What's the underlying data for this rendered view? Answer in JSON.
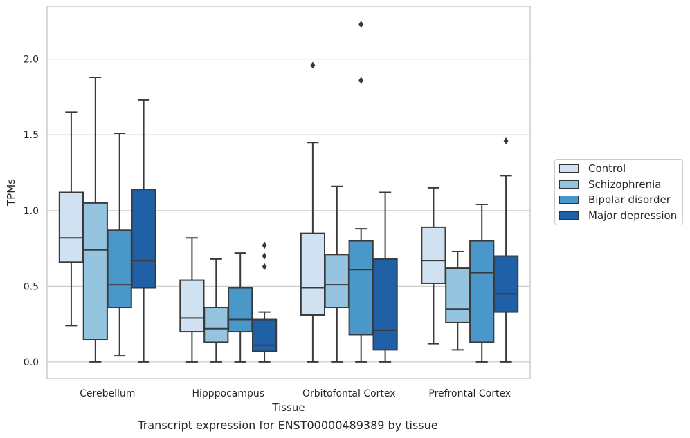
{
  "caption": "Transcript expression for ENST00000489389 by tissue",
  "colors": {
    "Control": "#d0e1f2",
    "Schizophrenia": "#94c4df",
    "Bipolar disorder": "#4a98c9",
    "Major depression": "#2060a7",
    "line": "#3a3a3a",
    "grid": "#cccccc",
    "frame": "#cccccc"
  },
  "chart_data": {
    "type": "boxplot",
    "xlabel": "Tissue",
    "ylabel": "TPMs",
    "ylim": [
      -0.11,
      2.35
    ],
    "yticks": [
      0.0,
      0.5,
      1.0,
      1.5,
      2.0
    ],
    "ytick_labels": [
      "0.0",
      "0.5",
      "1.0",
      "1.5",
      "2.0"
    ],
    "categories": [
      "Cerebellum",
      "Hipppocampus",
      "Orbitofontal Cortex",
      "Prefrontal Cortex"
    ],
    "grid": "horizontal",
    "legend_position": "right",
    "series": [
      {
        "name": "Control",
        "boxes": [
          {
            "whislo": 0.24,
            "q1": 0.66,
            "med": 0.82,
            "q3": 1.12,
            "whishi": 1.65,
            "fliers": []
          },
          {
            "whislo": 0.0,
            "q1": 0.2,
            "med": 0.29,
            "q3": 0.54,
            "whishi": 0.82,
            "fliers": []
          },
          {
            "whislo": 0.0,
            "q1": 0.31,
            "med": 0.49,
            "q3": 0.85,
            "whishi": 1.45,
            "fliers": [
              1.96
            ]
          },
          {
            "whislo": 0.12,
            "q1": 0.52,
            "med": 0.67,
            "q3": 0.89,
            "whishi": 1.15,
            "fliers": []
          }
        ]
      },
      {
        "name": "Schizophrenia",
        "boxes": [
          {
            "whislo": 0.0,
            "q1": 0.15,
            "med": 0.74,
            "q3": 1.05,
            "whishi": 1.88,
            "fliers": []
          },
          {
            "whislo": 0.0,
            "q1": 0.13,
            "med": 0.22,
            "q3": 0.36,
            "whishi": 0.68,
            "fliers": []
          },
          {
            "whislo": 0.0,
            "q1": 0.36,
            "med": 0.51,
            "q3": 0.71,
            "whishi": 1.16,
            "fliers": []
          },
          {
            "whislo": 0.08,
            "q1": 0.26,
            "med": 0.35,
            "q3": 0.62,
            "whishi": 0.73,
            "fliers": []
          }
        ]
      },
      {
        "name": "Bipolar disorder",
        "boxes": [
          {
            "whislo": 0.04,
            "q1": 0.36,
            "med": 0.51,
            "q3": 0.87,
            "whishi": 1.51,
            "fliers": []
          },
          {
            "whislo": 0.0,
            "q1": 0.2,
            "med": 0.28,
            "q3": 0.49,
            "whishi": 0.72,
            "fliers": []
          },
          {
            "whislo": 0.0,
            "q1": 0.18,
            "med": 0.61,
            "q3": 0.8,
            "whishi": 0.88,
            "fliers": [
              1.86,
              2.23
            ]
          },
          {
            "whislo": 0.0,
            "q1": 0.13,
            "med": 0.59,
            "q3": 0.8,
            "whishi": 1.04,
            "fliers": []
          }
        ]
      },
      {
        "name": "Major depression",
        "boxes": [
          {
            "whislo": 0.0,
            "q1": 0.49,
            "med": 0.67,
            "q3": 1.14,
            "whishi": 1.73,
            "fliers": []
          },
          {
            "whislo": 0.0,
            "q1": 0.07,
            "med": 0.11,
            "q3": 0.28,
            "whishi": 0.33,
            "fliers": [
              0.63,
              0.7,
              0.77
            ]
          },
          {
            "whislo": 0.0,
            "q1": 0.08,
            "med": 0.21,
            "q3": 0.68,
            "whishi": 1.12,
            "fliers": []
          },
          {
            "whislo": 0.0,
            "q1": 0.33,
            "med": 0.45,
            "q3": 0.7,
            "whishi": 1.23,
            "fliers": [
              1.46
            ]
          }
        ]
      }
    ]
  }
}
